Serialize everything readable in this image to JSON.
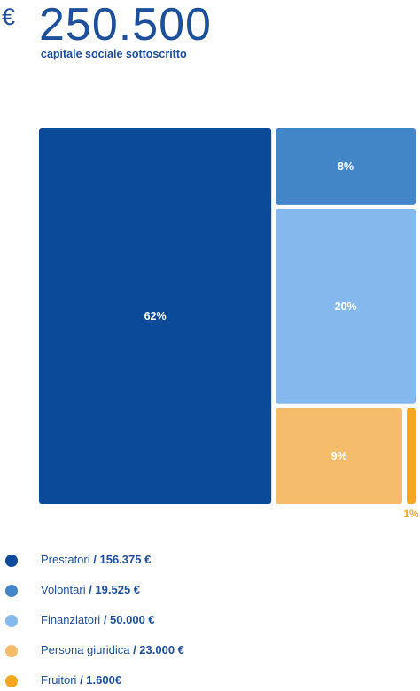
{
  "header": {
    "currency": "€",
    "amount": "250.500",
    "subtitle": "capitale sociale sottoscritto"
  },
  "chart_data": {
    "type": "treemap",
    "total": 250500,
    "unit": "€",
    "items": [
      {
        "name": "Prestatori",
        "value": 156375,
        "value_label": "156.375 €",
        "percent_label": "62%",
        "color": "#0b4a98"
      },
      {
        "name": "Volontari",
        "value": 19525,
        "value_label": "19.525 €",
        "percent_label": "8%",
        "color": "#4286c8"
      },
      {
        "name": "Finanziatori",
        "value": 50000,
        "value_label": "50.000 €",
        "percent_label": "20%",
        "color": "#85b8ec"
      },
      {
        "name": "Persona giuridica",
        "value": 23000,
        "value_label": "23.000 €",
        "percent_label": "9%",
        "color": "#f5bd6b"
      },
      {
        "name": "Fruitori",
        "value": 1600,
        "value_label": "1.600€",
        "percent_label": "1%",
        "color": "#f5a623"
      }
    ],
    "legend_position": "bottom"
  }
}
